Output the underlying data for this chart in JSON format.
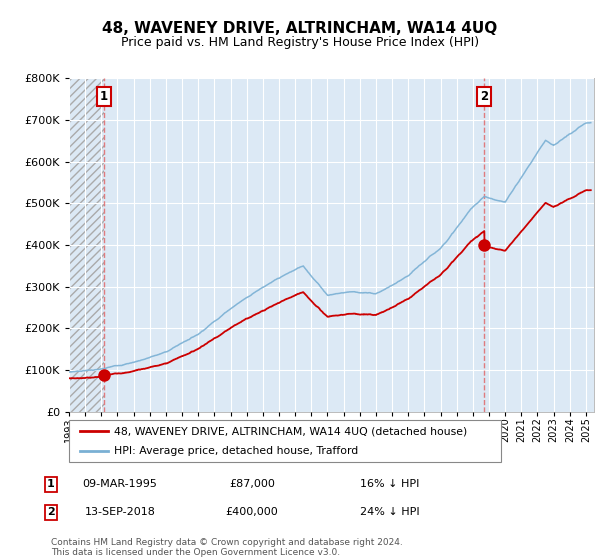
{
  "title": "48, WAVENEY DRIVE, ALTRINCHAM, WA14 4UQ",
  "subtitle": "Price paid vs. HM Land Registry's House Price Index (HPI)",
  "legend_line1": "48, WAVENEY DRIVE, ALTRINCHAM, WA14 4UQ (detached house)",
  "legend_line2": "HPI: Average price, detached house, Trafford",
  "sale1_date": "09-MAR-1995",
  "sale1_price": 87000,
  "sale1_label": "16% ↓ HPI",
  "sale2_date": "13-SEP-2018",
  "sale2_price": 400000,
  "sale2_label": "24% ↓ HPI",
  "footnote": "Contains HM Land Registry data © Crown copyright and database right 2024.\nThis data is licensed under the Open Government Licence v3.0.",
  "sale1_x": 1995.18,
  "sale2_x": 2018.71,
  "xmin": 1993,
  "xmax": 2025.5,
  "ymin": 0,
  "ymax": 800000,
  "background_color": "#dce9f5",
  "red_color": "#cc0000",
  "blue_color": "#7ab0d4",
  "grid_color": "#ffffff"
}
